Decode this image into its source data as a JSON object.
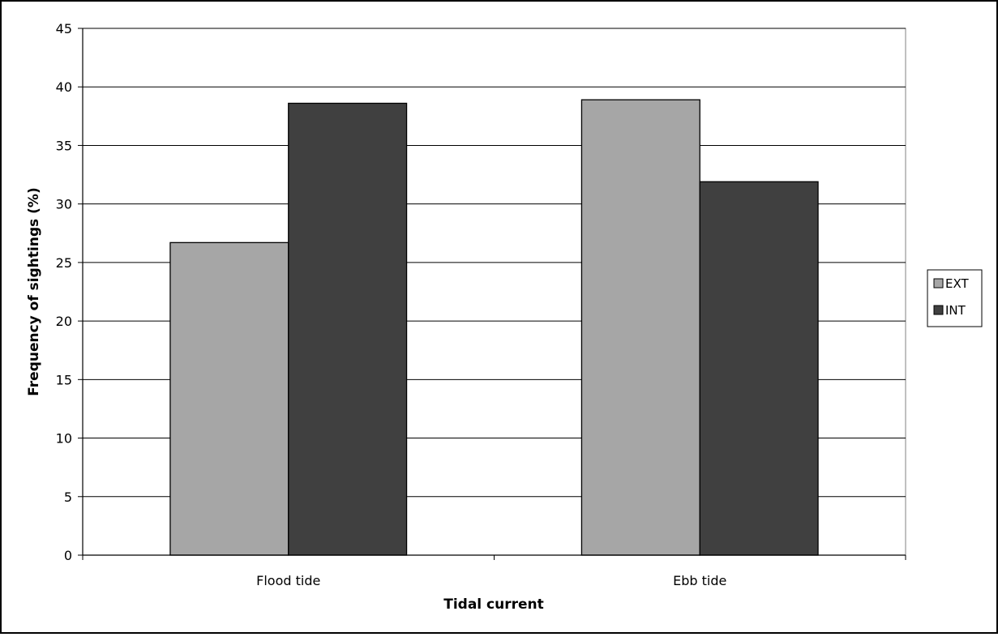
{
  "chart_data": {
    "type": "bar",
    "categories": [
      "Flood tide",
      "Ebb tide"
    ],
    "series": [
      {
        "name": "EXT",
        "values": [
          26.7,
          38.9
        ],
        "color": "#a6a6a6"
      },
      {
        "name": "INT",
        "values": [
          38.6,
          31.9
        ],
        "color": "#404040"
      }
    ],
    "title": "",
    "xlabel": "Tidal current",
    "ylabel": "Frequency of sightings (%)",
    "ylim": [
      0,
      45
    ],
    "yticks": [
      0,
      5,
      10,
      15,
      20,
      25,
      30,
      35,
      40,
      45
    ],
    "grid": true,
    "legend_position": "right"
  }
}
